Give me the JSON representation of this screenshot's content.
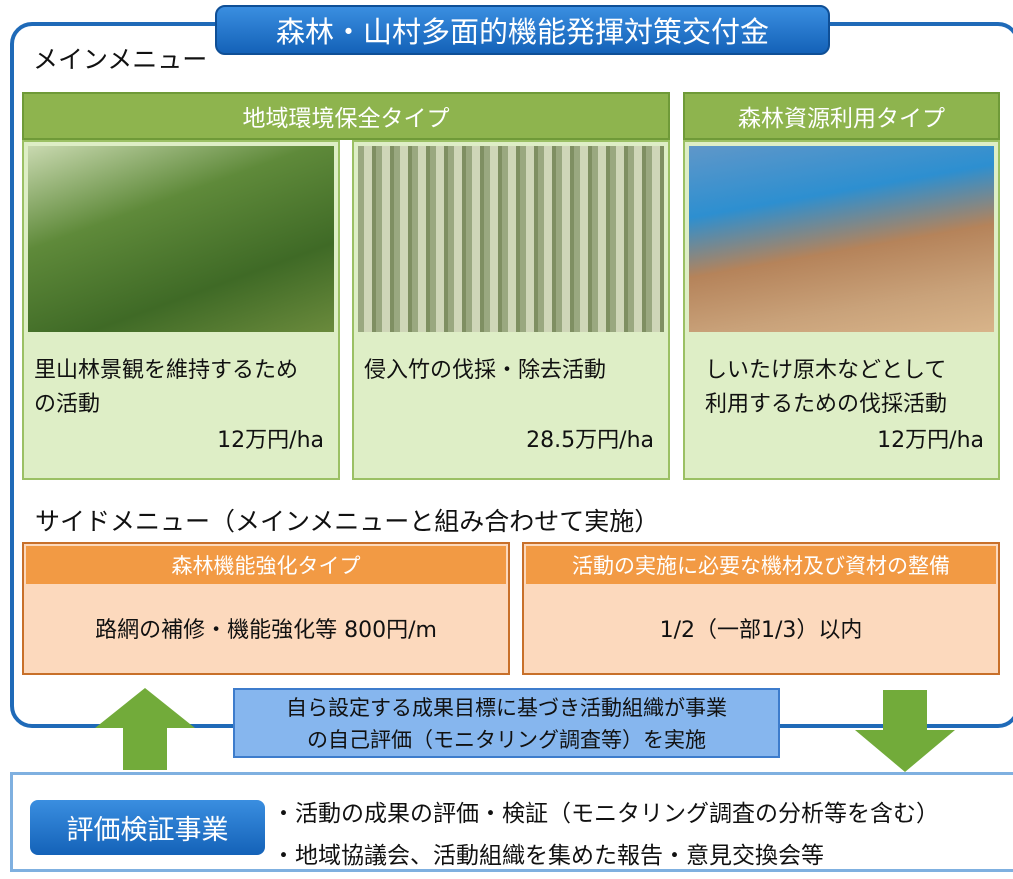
{
  "header": {
    "title": "森林・山村多面的機能発揮対策交付金"
  },
  "main_menu": {
    "label": "メインメニュー",
    "groups": [
      {
        "title": "地域環境保全タイプ",
        "cards": [
          {
            "lines": [
              "里山林景観を維持するため",
              "の活動"
            ],
            "rate": "12万円/ha"
          },
          {
            "lines": [
              "侵入竹の伐採・除去活動"
            ],
            "rate": "28.5万円/ha"
          }
        ]
      },
      {
        "title": "森林資源利用タイプ",
        "cards": [
          {
            "lines": [
              "しいたけ原木などとして",
              "利用するための伐採活動"
            ],
            "rate": "12万円/ha"
          }
        ]
      }
    ]
  },
  "side_menu": {
    "label": "サイドメニュー（メインメニューと組み合わせて実施）",
    "boxes": [
      {
        "title": "森林機能強化タイプ",
        "text": "路網の補修・機能強化等 800円/m"
      },
      {
        "title": "活動の実施に必要な機材及び資材の整備",
        "text": "1/2（一部1/3）以内"
      }
    ]
  },
  "callout": {
    "lines": [
      "自ら設定する成果目標に基づき活動組織が事業",
      "の自己評価（モニタリング調査等）を実施"
    ]
  },
  "evaluation": {
    "label": "評価検証事業",
    "items": [
      "・活動の成果の評価・検証（モニタリング調査の分析等を含む）",
      "・地域協議会、活動組織を集めた報告・意見交換会等"
    ]
  }
}
